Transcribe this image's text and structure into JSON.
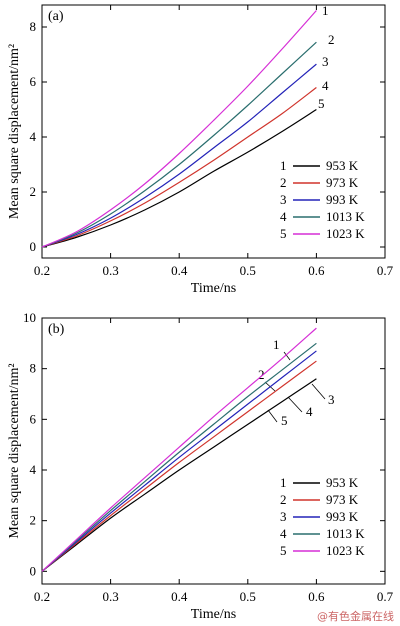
{
  "chart_data": [
    {
      "panel_label": "(a)",
      "type": "line",
      "xlabel": "Time/ns",
      "ylabel": "Mean square displacement/nm²",
      "xlim": [
        0.2,
        0.7
      ],
      "ylim": [
        -0.4,
        8.8
      ],
      "xticks": [
        0.2,
        0.3,
        0.4,
        0.5,
        0.6,
        0.7
      ],
      "yticks": [
        0,
        2,
        4,
        6,
        8
      ],
      "x": [
        0.2,
        0.25,
        0.3,
        0.35,
        0.4,
        0.45,
        0.5,
        0.55,
        0.6
      ],
      "series": [
        {
          "name": "953 K",
          "label": "1",
          "color": "#000000",
          "values": [
            0,
            0.35,
            0.8,
            1.35,
            2.0,
            2.75,
            3.45,
            4.2,
            5.0
          ]
        },
        {
          "name": "973 K",
          "label": "2",
          "color": "#d0342c",
          "values": [
            0,
            0.4,
            0.95,
            1.6,
            2.35,
            3.15,
            4.0,
            4.85,
            5.8
          ]
        },
        {
          "name": "993 K",
          "label": "3",
          "color": "#2323b8",
          "values": [
            0,
            0.45,
            1.05,
            1.8,
            2.65,
            3.6,
            4.55,
            5.6,
            6.65
          ]
        },
        {
          "name": "1013 K",
          "label": "4",
          "color": "#2a6e6e",
          "values": [
            0,
            0.5,
            1.2,
            2.05,
            3.0,
            4.05,
            5.15,
            6.3,
            7.45
          ]
        },
        {
          "name": "1023 K",
          "label": "5",
          "color": "#d62fd6",
          "values": [
            0,
            0.55,
            1.35,
            2.3,
            3.4,
            4.6,
            5.85,
            7.2,
            8.6
          ]
        }
      ],
      "legend": "bottom-right",
      "grid": false
    },
    {
      "panel_label": "(b)",
      "type": "line",
      "xlabel": "Time/ns",
      "ylabel": "Mean square displacement/nm²",
      "xlim": [
        0.2,
        0.7
      ],
      "ylim": [
        -0.5,
        10
      ],
      "xticks": [
        0.2,
        0.3,
        0.4,
        0.5,
        0.6,
        0.7
      ],
      "yticks": [
        0,
        2,
        4,
        6,
        8,
        10
      ],
      "x": [
        0.2,
        0.25,
        0.3,
        0.35,
        0.4,
        0.45,
        0.5,
        0.55,
        0.6
      ],
      "series": [
        {
          "name": "953 K",
          "label": "1",
          "color": "#000000",
          "values": [
            0,
            1.05,
            2.1,
            3.05,
            4.0,
            4.9,
            5.8,
            6.7,
            7.6
          ]
        },
        {
          "name": "973 K",
          "label": "2",
          "color": "#d0342c",
          "values": [
            0,
            1.1,
            2.2,
            3.25,
            4.3,
            5.3,
            6.3,
            7.3,
            8.3
          ]
        },
        {
          "name": "993 K",
          "label": "3",
          "color": "#2323b8",
          "values": [
            0,
            1.15,
            2.3,
            3.4,
            4.5,
            5.55,
            6.6,
            7.65,
            8.7
          ]
        },
        {
          "name": "1013 K",
          "label": "4",
          "color": "#2a6e6e",
          "values": [
            0,
            1.2,
            2.4,
            3.55,
            4.7,
            5.8,
            6.9,
            7.95,
            9.0
          ]
        },
        {
          "name": "1023 K",
          "label": "5",
          "color": "#d62fd6",
          "values": [
            0,
            1.25,
            2.5,
            3.7,
            4.9,
            6.1,
            7.25,
            8.4,
            9.6
          ]
        }
      ],
      "legend": "bottom-right",
      "grid": false
    }
  ],
  "watermark": "@有色金属在线"
}
